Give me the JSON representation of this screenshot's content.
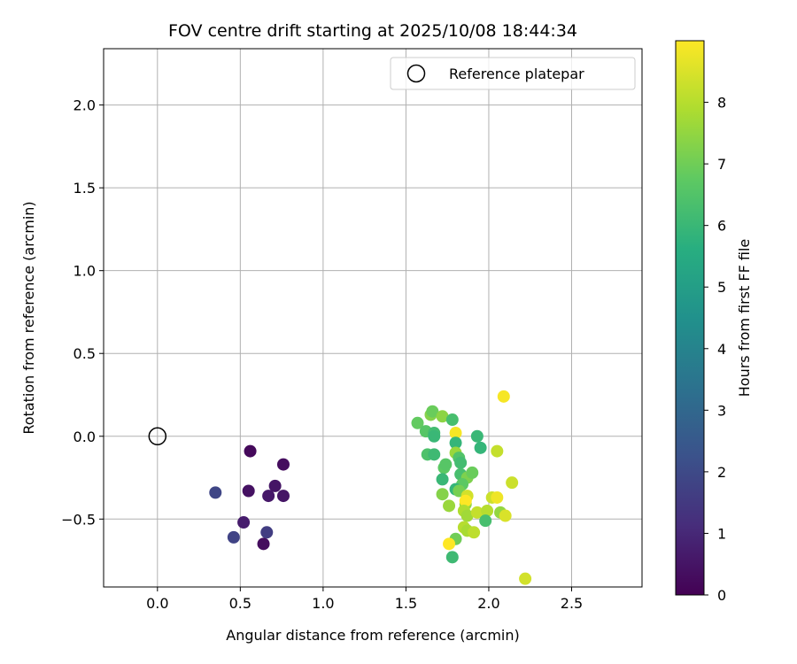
{
  "chart_data": {
    "type": "scatter",
    "title": "FOV centre drift starting at 2025/10/08 18:44:34",
    "xlabel": "Angular distance from reference (arcmin)",
    "ylabel": "Rotation from reference (arcmin)",
    "xlim": [
      -0.325,
      2.925
    ],
    "ylim": [
      -0.91,
      2.34
    ],
    "xticks": [
      0.0,
      0.5,
      1.0,
      1.5,
      2.0,
      2.5
    ],
    "yticks": [
      -0.5,
      0.0,
      0.5,
      1.0,
      1.5,
      2.0
    ],
    "xtick_labels": [
      "0.0",
      "0.5",
      "1.0",
      "1.5",
      "2.0",
      "2.5"
    ],
    "ytick_labels": [
      "−0.5",
      "0.0",
      "0.5",
      "1.0",
      "1.5",
      "2.0"
    ],
    "grid": true,
    "legend": {
      "placement": "top-right",
      "entries": [
        "Reference platepar"
      ]
    },
    "reference_point": {
      "name": "Reference platepar",
      "x": 0.0,
      "y": 0.0
    },
    "colorbar": {
      "label": "Hours from first FF file",
      "colormap": "viridis",
      "range": [
        0,
        9
      ],
      "ticks": [
        0,
        1,
        2,
        3,
        4,
        5,
        6,
        7,
        8
      ],
      "tick_labels": [
        "0",
        "1",
        "2",
        "3",
        "4",
        "5",
        "6",
        "7",
        "8"
      ]
    },
    "points": [
      {
        "x": 0.56,
        "y": -0.09,
        "hours": 0.2
      },
      {
        "x": 0.76,
        "y": -0.17,
        "hours": 0.3
      },
      {
        "x": 0.55,
        "y": -0.33,
        "hours": 0.4
      },
      {
        "x": 0.71,
        "y": -0.3,
        "hours": 0.5
      },
      {
        "x": 0.67,
        "y": -0.36,
        "hours": 0.6
      },
      {
        "x": 0.76,
        "y": -0.36,
        "hours": 0.5
      },
      {
        "x": 0.52,
        "y": -0.52,
        "hours": 0.7
      },
      {
        "x": 0.64,
        "y": -0.65,
        "hours": 0.3
      },
      {
        "x": 0.66,
        "y": -0.58,
        "hours": 1.6
      },
      {
        "x": 0.46,
        "y": -0.61,
        "hours": 1.8
      },
      {
        "x": 0.35,
        "y": -0.34,
        "hours": 1.9
      },
      {
        "x": 1.57,
        "y": 0.08,
        "hours": 6.8
      },
      {
        "x": 1.62,
        "y": 0.03,
        "hours": 6.6
      },
      {
        "x": 1.65,
        "y": 0.13,
        "hours": 7.3
      },
      {
        "x": 1.66,
        "y": 0.15,
        "hours": 6.9
      },
      {
        "x": 1.67,
        "y": 0.02,
        "hours": 6.2
      },
      {
        "x": 1.67,
        "y": 0.0,
        "hours": 6.0
      },
      {
        "x": 1.63,
        "y": -0.11,
        "hours": 6.4
      },
      {
        "x": 1.67,
        "y": -0.11,
        "hours": 6.1
      },
      {
        "x": 1.72,
        "y": 0.12,
        "hours": 7.4
      },
      {
        "x": 1.78,
        "y": 0.1,
        "hours": 6.3
      },
      {
        "x": 1.8,
        "y": 0.02,
        "hours": 8.9
      },
      {
        "x": 1.8,
        "y": -0.04,
        "hours": 5.9
      },
      {
        "x": 1.8,
        "y": -0.1,
        "hours": 7.6
      },
      {
        "x": 1.82,
        "y": -0.13,
        "hours": 6.5
      },
      {
        "x": 1.83,
        "y": -0.16,
        "hours": 6.2
      },
      {
        "x": 1.73,
        "y": -0.19,
        "hours": 6.7
      },
      {
        "x": 1.74,
        "y": -0.17,
        "hours": 6.6
      },
      {
        "x": 1.72,
        "y": -0.26,
        "hours": 6.0
      },
      {
        "x": 1.83,
        "y": -0.23,
        "hours": 6.3
      },
      {
        "x": 1.87,
        "y": -0.25,
        "hours": 7.2
      },
      {
        "x": 1.9,
        "y": -0.22,
        "hours": 6.9
      },
      {
        "x": 1.84,
        "y": -0.29,
        "hours": 6.7
      },
      {
        "x": 1.8,
        "y": -0.32,
        "hours": 5.9
      },
      {
        "x": 1.82,
        "y": -0.33,
        "hours": 7.1
      },
      {
        "x": 1.72,
        "y": -0.35,
        "hours": 7.3
      },
      {
        "x": 1.76,
        "y": -0.42,
        "hours": 7.6
      },
      {
        "x": 1.86,
        "y": -0.41,
        "hours": 7.5
      },
      {
        "x": 1.87,
        "y": -0.36,
        "hours": 8.4
      },
      {
        "x": 1.86,
        "y": -0.39,
        "hours": 9.0
      },
      {
        "x": 1.85,
        "y": -0.45,
        "hours": 7.9
      },
      {
        "x": 1.87,
        "y": -0.48,
        "hours": 7.7
      },
      {
        "x": 1.85,
        "y": -0.55,
        "hours": 8.0
      },
      {
        "x": 1.87,
        "y": -0.57,
        "hours": 7.8
      },
      {
        "x": 1.91,
        "y": -0.58,
        "hours": 8.1
      },
      {
        "x": 1.8,
        "y": -0.62,
        "hours": 7.0
      },
      {
        "x": 1.76,
        "y": -0.65,
        "hours": 9.0
      },
      {
        "x": 1.78,
        "y": -0.73,
        "hours": 6.1
      },
      {
        "x": 1.93,
        "y": 0.0,
        "hours": 6.0
      },
      {
        "x": 1.95,
        "y": -0.07,
        "hours": 5.9
      },
      {
        "x": 2.05,
        "y": -0.09,
        "hours": 8.2
      },
      {
        "x": 2.09,
        "y": 0.24,
        "hours": 8.9
      },
      {
        "x": 2.02,
        "y": -0.37,
        "hours": 8.3
      },
      {
        "x": 2.05,
        "y": -0.37,
        "hours": 8.8
      },
      {
        "x": 1.93,
        "y": -0.46,
        "hours": 8.2
      },
      {
        "x": 1.99,
        "y": -0.45,
        "hours": 8.0
      },
      {
        "x": 1.98,
        "y": -0.51,
        "hours": 6.3
      },
      {
        "x": 2.07,
        "y": -0.46,
        "hours": 7.5
      },
      {
        "x": 2.1,
        "y": -0.48,
        "hours": 8.5
      },
      {
        "x": 2.14,
        "y": -0.28,
        "hours": 8.3
      },
      {
        "x": 2.22,
        "y": -0.86,
        "hours": 8.4
      }
    ]
  }
}
